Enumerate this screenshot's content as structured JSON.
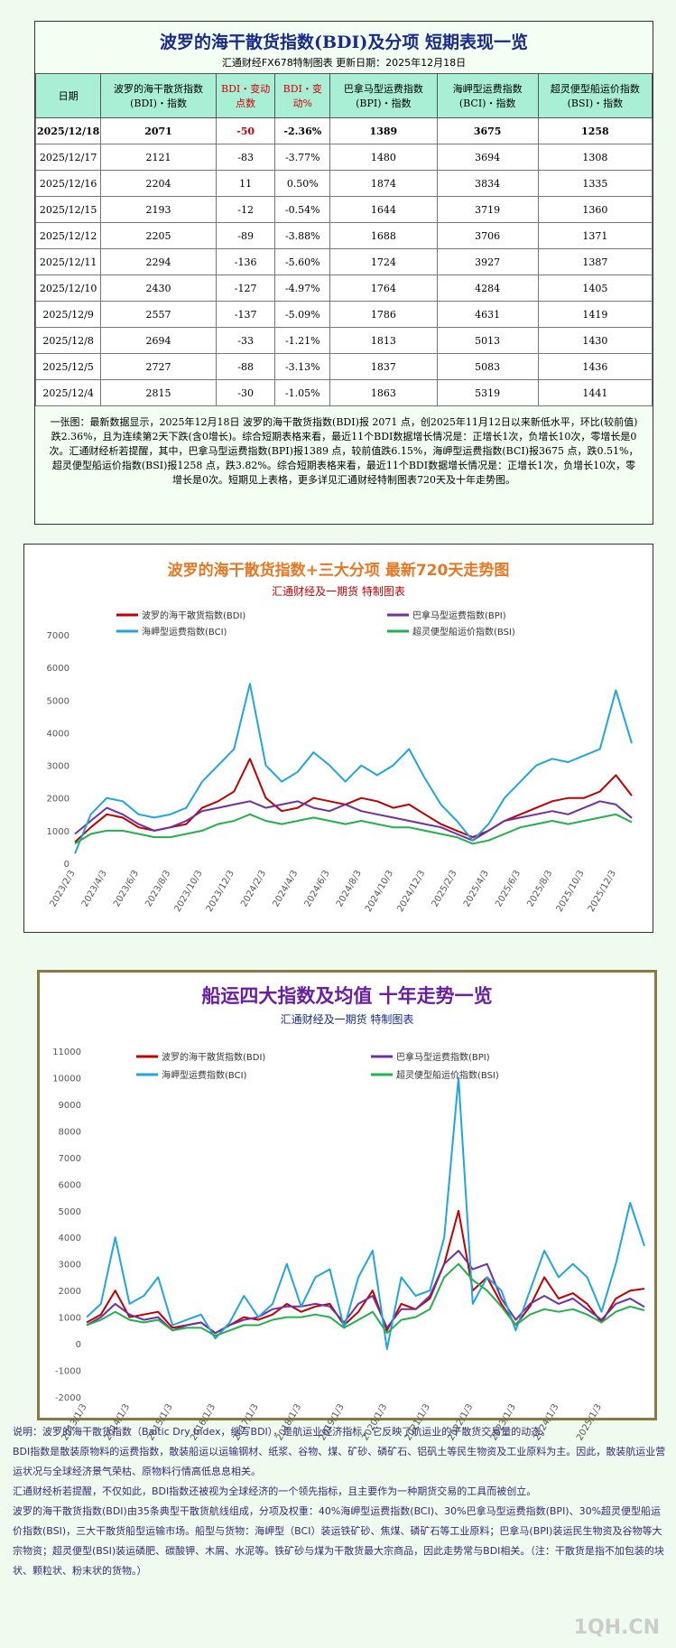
{
  "header": {
    "title": "波罗的海干散货指数(BDI)及分项  短期表现一览",
    "subtitle": "汇通财经FX678特制图表      更新日期：2025年12月18日"
  },
  "table": {
    "columns": [
      "日期",
      "波罗的海干散货指数(BDI)・指数",
      "BDI・变动点数",
      "BDI・变动%",
      "巴拿马型运费指数(BPI)・指数",
      "海岬型运费指数(BCI)・指数",
      "超灵便型船运价指数(BSI)・指数"
    ],
    "rows": [
      [
        "2025/12/18",
        "2071",
        "-50",
        "-2.36%",
        "1389",
        "3675",
        "1258"
      ],
      [
        "2025/12/17",
        "2121",
        "-83",
        "-3.77%",
        "1480",
        "3694",
        "1308"
      ],
      [
        "2025/12/16",
        "2204",
        "11",
        "0.50%",
        "1874",
        "3834",
        "1335"
      ],
      [
        "2025/12/15",
        "2193",
        "-12",
        "-0.54%",
        "1644",
        "3719",
        "1360"
      ],
      [
        "2025/12/12",
        "2205",
        "-89",
        "-3.88%",
        "1688",
        "3706",
        "1371"
      ],
      [
        "2025/12/11",
        "2294",
        "-136",
        "-5.60%",
        "1724",
        "3927",
        "1387"
      ],
      [
        "2025/12/10",
        "2430",
        "-127",
        "-4.97%",
        "1764",
        "4284",
        "1405"
      ],
      [
        "2025/12/9",
        "2557",
        "-137",
        "-5.09%",
        "1786",
        "4631",
        "1419"
      ],
      [
        "2025/12/8",
        "2694",
        "-33",
        "-1.21%",
        "1813",
        "5013",
        "1430"
      ],
      [
        "2025/12/5",
        "2727",
        "-88",
        "-3.13%",
        "1837",
        "5083",
        "1436"
      ],
      [
        "2025/12/4",
        "2815",
        "-30",
        "-1.05%",
        "1863",
        "5319",
        "1441"
      ]
    ]
  },
  "summary": "一张图：最新数据显示，2025年12月18日 波罗的海干散货指数(BDI)报 2071 点，创2025年11月12日以来新低水平，环比(较前值)跌2.36%，且为连续第2天下跌(含0增长)。综合短期表格来看，最近11个BDI数据增长情况是：正增长1次，负增长10次，零增长是0次。汇通财经析若提醒，其中，巴拿马型运费指数(BPI)报1389 点，较前值跌6.15%，海岬型运费指数(BCI)报3675 点，跌0.51%，超灵便型船运价指数(BSI)报1258 点，跌3.82%。综合短期表格来看，最近11个BDI数据增长情况是：正增长1次，负增长10次，零增长是0次。短期见上表格，更多详见汇通财经特制图表720天及十年走势图。",
  "chart_data": [
    {
      "type": "line",
      "title": "波罗的海干散货指数+三大分项  最新720天走势图",
      "subtitle": "汇通财经及一期货  特制图表",
      "categories": [
        "2023/2/3",
        null,
        "2023/4/3",
        null,
        "2023/6/3",
        null,
        "2023/8/3",
        null,
        "2023/10/3",
        null,
        "2023/12/3",
        null,
        "2024/2/3",
        null,
        "2024/4/3",
        null,
        "2024/6/3",
        null,
        "2024/8/3",
        null,
        "2024/10/3",
        null,
        "2024/12/3",
        null,
        "2025/2/3",
        null,
        "2025/4/3",
        null,
        "2025/6/3",
        null,
        "2025/8/3",
        null,
        "2025/10/3",
        null,
        "2025/12/3",
        null
      ],
      "series": [
        {
          "name": "波罗的海干散货指数(BDI)",
          "color": "#c00000",
          "values": [
            650,
            1100,
            1500,
            1400,
            1100,
            1000,
            1100,
            1200,
            1700,
            1900,
            2200,
            3200,
            2000,
            1600,
            1700,
            2000,
            1900,
            1800,
            2000,
            1900,
            1700,
            1800,
            1500,
            1200,
            1000,
            800,
            1000,
            1300,
            1500,
            1700,
            1900,
            2000,
            2000,
            2200,
            2700,
            2071
          ]
        },
        {
          "name": "巴拿马型运费指数(BPI)",
          "color": "#7030a0",
          "values": [
            900,
            1300,
            1700,
            1500,
            1200,
            1000,
            1100,
            1300,
            1600,
            1700,
            1800,
            1900,
            1700,
            1800,
            1900,
            1700,
            1600,
            1800,
            1600,
            1500,
            1400,
            1300,
            1200,
            1100,
            900,
            700,
            1000,
            1300,
            1400,
            1500,
            1600,
            1500,
            1700,
            1900,
            1800,
            1389
          ]
        },
        {
          "name": "海岬型运费指数(BCI)",
          "color": "#1fa5e0",
          "values": [
            300,
            1500,
            2000,
            1900,
            1500,
            1400,
            1500,
            1700,
            2500,
            3000,
            3500,
            5500,
            3000,
            2500,
            2800,
            3400,
            3000,
            2500,
            3000,
            2700,
            3000,
            3500,
            2600,
            1800,
            1300,
            700,
            1200,
            2000,
            2500,
            3000,
            3200,
            3100,
            3300,
            3500,
            5300,
            3675
          ]
        },
        {
          "name": "超灵便型船运价指数(BSI)",
          "color": "#22b14c",
          "values": [
            600,
            900,
            1000,
            1000,
            900,
            800,
            800,
            900,
            1000,
            1200,
            1300,
            1500,
            1300,
            1200,
            1300,
            1400,
            1300,
            1200,
            1300,
            1200,
            1100,
            1100,
            1000,
            900,
            800,
            600,
            700,
            900,
            1100,
            1200,
            1300,
            1200,
            1300,
            1400,
            1500,
            1258
          ]
        }
      ],
      "ylim": [
        0,
        7000
      ],
      "yticks": [
        0,
        1000,
        2000,
        3000,
        4000,
        5000,
        6000,
        7000
      ],
      "grid": false
    },
    {
      "type": "line",
      "title": "船运四大指数及均值 十年走势一览",
      "subtitle": "汇通财经及一期货 特制图表",
      "categories": [
        "2013/1/3",
        null,
        null,
        "2014/1/3",
        null,
        null,
        "2015/1/3",
        null,
        null,
        "2016/1/3",
        null,
        null,
        "2017/1/3",
        null,
        null,
        "2018/1/3",
        null,
        null,
        "2019/1/3",
        null,
        null,
        "2020/1/3",
        null,
        null,
        "2021/1/3",
        null,
        null,
        "2022/1/3",
        null,
        null,
        "2023/1/3",
        null,
        null,
        "2024/1/3",
        null,
        null,
        "2025/1/3",
        null,
        null,
        null
      ],
      "series": [
        {
          "name": "波罗的海干散货指数(BDI)",
          "color": "#c00000",
          "values": [
            800,
            1100,
            2000,
            1000,
            1100,
            1200,
            600,
            700,
            800,
            400,
            700,
            1000,
            900,
            1100,
            1500,
            1200,
            1400,
            1500,
            700,
            1200,
            2000,
            500,
            1500,
            1300,
            1700,
            3000,
            5000,
            2000,
            2500,
            1500,
            700,
            1400,
            2500,
            1700,
            1900,
            1500,
            800,
            1700,
            2000,
            2071
          ]
        },
        {
          "name": "巴拿马型运费指数(BPI)",
          "color": "#7030a0",
          "values": [
            700,
            1000,
            1500,
            1100,
            900,
            1000,
            500,
            700,
            800,
            400,
            700,
            900,
            1000,
            1300,
            1400,
            1400,
            1500,
            1400,
            800,
            1500,
            1800,
            600,
            1300,
            1300,
            1800,
            3000,
            3500,
            2800,
            3000,
            1700,
            900,
            1500,
            1800,
            1500,
            1700,
            1300,
            900,
            1500,
            1700,
            1389
          ]
        },
        {
          "name": "海岬型运费指数(BCI)",
          "color": "#1fa5e0",
          "values": [
            1000,
            1500,
            4000,
            1500,
            1800,
            2500,
            700,
            900,
            1100,
            200,
            800,
            1800,
            1000,
            1500,
            3000,
            1400,
            2500,
            2800,
            600,
            2500,
            3500,
            -200,
            2500,
            1800,
            2000,
            4000,
            10000,
            1500,
            2500,
            2000,
            500,
            2000,
            3500,
            2500,
            3000,
            2500,
            1200,
            3000,
            5300,
            3675
          ]
        },
        {
          "name": "超灵便型船运价指数(BSI)",
          "color": "#22b14c",
          "values": [
            700,
            900,
            1200,
            900,
            800,
            900,
            500,
            600,
            600,
            300,
            500,
            700,
            700,
            900,
            1000,
            1000,
            1100,
            1000,
            600,
            900,
            1200,
            400,
            900,
            1000,
            1300,
            2500,
            3000,
            2400,
            2000,
            1400,
            700,
            1100,
            1300,
            1200,
            1300,
            1100,
            800,
            1200,
            1400,
            1258
          ]
        }
      ],
      "ylim": [
        -2000,
        11000
      ],
      "yticks": [
        -2000,
        -1000,
        0,
        1000,
        2000,
        3000,
        4000,
        5000,
        6000,
        7000,
        8000,
        9000,
        10000,
        11000
      ],
      "grid": false
    }
  ],
  "notes": [
    "说明：波罗的海干散货指数（Baltic Dry Index，缩写BDI），是航运业经济指标，它反映了航运业的干散货交易量的动态。",
    "BDI指数是散装原物料的运费指数，散装船运以运输钢材、纸浆、谷物、煤、矿砂、磷矿石、铝矾土等民生物资及工业原料为主。因此，散装航运业营运状况与全球经济景气荣枯、原物料行情高低息息相关。",
    "汇通财经析若提醒，不仅如此，BDI指数还被视为全球经济的一个领先指标，且主要作为一种期货交易的工具而被创立。",
    "波罗的海干散货指数(BDI)由35条典型干散货航线组成，分项及权重：40%海岬型运费指数(BCI)、30%巴拿马型运费指数(BPI)、30%超灵便型船运价指数(BSI)，三大干散货船型运输市场。船型与货物：海岬型（BCI）装运铁矿砂、焦煤、磷矿石等工业原料；巴拿马(BPI)装运民生物资及谷物等大宗物资；超灵便型(BSI)装运磷肥、碳酸钾、木屑、水泥等。铁矿砂与煤为干散货最大宗商品，因此走势常与BDI相关。（注：干散货是指不加包装的块状、颗粒状、粉末状的货物。）"
  ],
  "footer": "1QH.CN"
}
